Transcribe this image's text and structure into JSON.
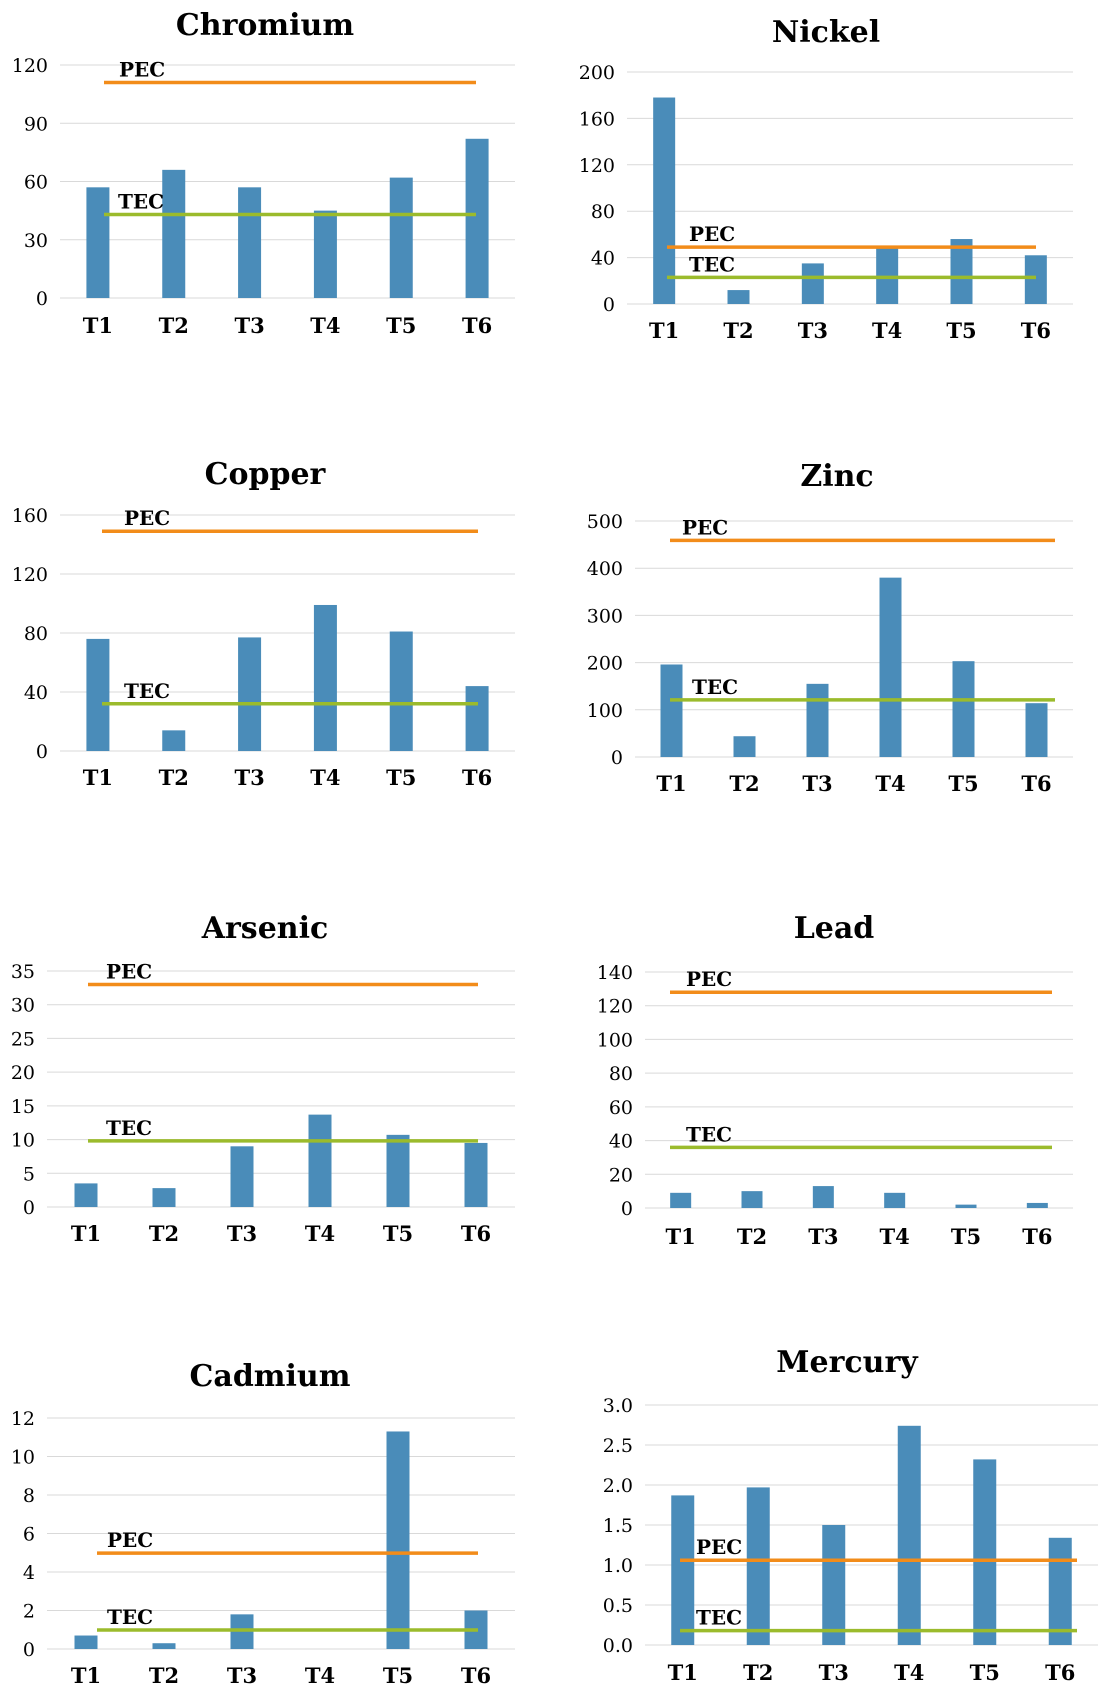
{
  "colors": {
    "bar": "#4a8cb9",
    "pec": "#f28c1a",
    "tec": "#9bbb2c",
    "grid": "#d9d9d9"
  },
  "chart_data": [
    {
      "type": "bar",
      "title": "Chromium",
      "categories": [
        "T1",
        "T2",
        "T3",
        "T4",
        "T5",
        "T6"
      ],
      "values": [
        57,
        66,
        57,
        45,
        62,
        82
      ],
      "ylim": [
        0,
        120
      ],
      "yticks": [
        0,
        30,
        60,
        90,
        120
      ],
      "ytick_labels": [
        "0",
        "30",
        "60",
        "90",
        "120"
      ],
      "reference_lines": [
        {
          "label": "PEC",
          "value": 111
        },
        {
          "label": "TEC",
          "value": 43
        }
      ],
      "grid": true
    },
    {
      "type": "bar",
      "title": "Nickel",
      "categories": [
        "T1",
        "T2",
        "T3",
        "T4",
        "T5",
        "T6"
      ],
      "values": [
        178,
        12,
        35,
        48,
        56,
        42
      ],
      "ylim": [
        0,
        200
      ],
      "yticks": [
        0,
        40,
        80,
        120,
        160,
        200
      ],
      "ytick_labels": [
        "0",
        "40",
        "80",
        "120",
        "160",
        "200"
      ],
      "reference_lines": [
        {
          "label": "PEC",
          "value": 49
        },
        {
          "label": "TEC",
          "value": 23
        }
      ],
      "grid": true
    },
    {
      "type": "bar",
      "title": "Copper",
      "categories": [
        "T1",
        "T2",
        "T3",
        "T4",
        "T5",
        "T6"
      ],
      "values": [
        76,
        14,
        77,
        99,
        81,
        44
      ],
      "ylim": [
        0,
        160
      ],
      "yticks": [
        0,
        40,
        80,
        120,
        160
      ],
      "ytick_labels": [
        "0",
        "40",
        "80",
        "120",
        "160"
      ],
      "reference_lines": [
        {
          "label": "PEC",
          "value": 149
        },
        {
          "label": "TEC",
          "value": 32
        }
      ],
      "grid": true
    },
    {
      "type": "bar",
      "title": "Zinc",
      "categories": [
        "T1",
        "T2",
        "T3",
        "T4",
        "T5",
        "T6"
      ],
      "values": [
        196,
        44,
        155,
        380,
        203,
        114
      ],
      "ylim": [
        0,
        500
      ],
      "yticks": [
        0,
        100,
        200,
        300,
        400,
        500
      ],
      "ytick_labels": [
        "0",
        "100",
        "200",
        "300",
        "400",
        "500"
      ],
      "reference_lines": [
        {
          "label": "PEC",
          "value": 459
        },
        {
          "label": "TEC",
          "value": 121
        }
      ],
      "grid": true
    },
    {
      "type": "bar",
      "title": "Arsenic",
      "categories": [
        "T1",
        "T2",
        "T3",
        "T4",
        "T5",
        "T6"
      ],
      "values": [
        3.5,
        2.8,
        9,
        13.7,
        10.7,
        9.5
      ],
      "ylim": [
        0,
        35
      ],
      "yticks": [
        0,
        5,
        10,
        15,
        20,
        25,
        30,
        35
      ],
      "ytick_labels": [
        "0",
        "5",
        "10",
        "15",
        "20",
        "25",
        "30",
        "35"
      ],
      "reference_lines": [
        {
          "label": "PEC",
          "value": 33
        },
        {
          "label": "TEC",
          "value": 9.8
        }
      ],
      "grid": true
    },
    {
      "type": "bar",
      "title": "Lead",
      "categories": [
        "T1",
        "T2",
        "T3",
        "T4",
        "T5",
        "T6"
      ],
      "values": [
        9,
        10,
        13,
        9,
        2,
        3
      ],
      "ylim": [
        0,
        140
      ],
      "yticks": [
        0,
        20,
        40,
        60,
        80,
        100,
        120,
        140
      ],
      "ytick_labels": [
        "0",
        "20",
        "40",
        "60",
        "80",
        "100",
        "120",
        "140"
      ],
      "reference_lines": [
        {
          "label": "PEC",
          "value": 128
        },
        {
          "label": "TEC",
          "value": 36
        }
      ],
      "grid": true
    },
    {
      "type": "bar",
      "title": "Cadmium",
      "categories": [
        "T1",
        "T2",
        "T3",
        "T4",
        "T5",
        "T6"
      ],
      "values": [
        0.7,
        0.3,
        1.8,
        0,
        11.3,
        2
      ],
      "ylim": [
        0,
        12
      ],
      "yticks": [
        0,
        2,
        4,
        6,
        8,
        10,
        12
      ],
      "ytick_labels": [
        "0",
        "2",
        "4",
        "6",
        "8",
        "10",
        "12"
      ],
      "reference_lines": [
        {
          "label": "PEC",
          "value": 4.98
        },
        {
          "label": "TEC",
          "value": 0.99
        }
      ],
      "grid": true
    },
    {
      "type": "bar",
      "title": "Mercury",
      "categories": [
        "T1",
        "T2",
        "T3",
        "T4",
        "T5",
        "T6"
      ],
      "values": [
        1.87,
        1.97,
        1.5,
        2.74,
        2.32,
        1.34
      ],
      "ylim": [
        0,
        3
      ],
      "yticks": [
        0,
        0.5,
        1,
        1.5,
        2,
        2.5,
        3
      ],
      "ytick_labels": [
        "0.0",
        "0.5",
        "1.0",
        "1.5",
        "2.0",
        "2.5",
        "3.0"
      ],
      "reference_lines": [
        {
          "label": "PEC",
          "value": 1.06
        },
        {
          "label": "TEC",
          "value": 0.18
        }
      ],
      "grid": true
    }
  ]
}
